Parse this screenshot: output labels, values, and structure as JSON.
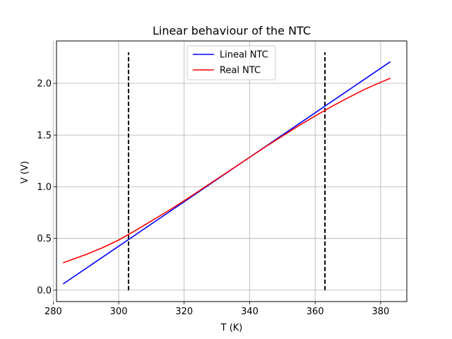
{
  "chart_data": {
    "type": "line",
    "title": "Linear behaviour of the NTC",
    "xlabel": "T (K)",
    "ylabel": "V (V)",
    "xlim": [
      281,
      388
    ],
    "ylim": [
      -0.11,
      2.41
    ],
    "xticks": [
      280,
      300,
      320,
      340,
      360,
      380
    ],
    "yticks": [
      0.0,
      0.5,
      1.0,
      1.5,
      2.0
    ],
    "xtick_labels": [
      "280",
      "300",
      "320",
      "340",
      "360",
      "380"
    ],
    "ytick_labels": [
      "0.0",
      "0.5",
      "1.0",
      "1.5",
      "2.0"
    ],
    "grid": true,
    "legend_position": "top-center",
    "series": [
      {
        "name": "Lineal NTC",
        "color": "#0000ff",
        "x": [
          283,
          383
        ],
        "y": [
          0.06,
          2.21
        ]
      },
      {
        "name": "Real NTC",
        "color": "#ff0000",
        "x": [
          283,
          290,
          295,
          300,
          305,
          310,
          315,
          320,
          325,
          330,
          335,
          340,
          345,
          350,
          355,
          360,
          365,
          370,
          375,
          380,
          383
        ],
        "y": [
          0.265,
          0.345,
          0.41,
          0.485,
          0.575,
          0.67,
          0.765,
          0.865,
          0.97,
          1.075,
          1.18,
          1.285,
          1.39,
          1.49,
          1.59,
          1.685,
          1.775,
          1.86,
          1.94,
          2.01,
          2.05
        ]
      }
    ],
    "vlines": [
      {
        "x": 303,
        "y0": 0.0,
        "y1": 2.3,
        "color": "#000000",
        "style": "dashed"
      },
      {
        "x": 363,
        "y0": 0.0,
        "y1": 2.3,
        "color": "#000000",
        "style": "dashed"
      }
    ]
  }
}
